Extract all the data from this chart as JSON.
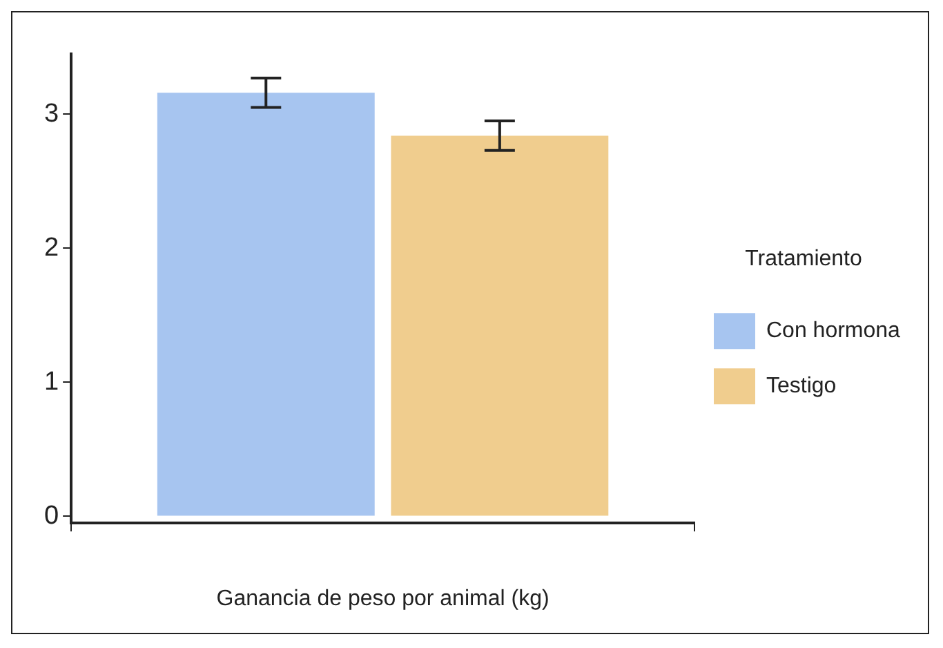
{
  "chart_data": {
    "type": "bar",
    "xlabel": "Ganancia de peso por animal (kg)",
    "categories": [
      null
    ],
    "series": [
      {
        "name": "Con hormona",
        "color": "#a7c5f0",
        "values": [
          3.16
        ],
        "errors": [
          [
            3.05,
            3.27
          ]
        ]
      },
      {
        "name": "Testigo",
        "color": "#f0cd8e",
        "values": [
          2.84
        ],
        "errors": [
          [
            2.73,
            2.95
          ]
        ]
      }
    ],
    "legend_title": "Tratamiento",
    "legend": "right",
    "grid": false,
    "ylim": [
      -0.05,
      3.45
    ],
    "yticks": [
      0,
      1,
      2,
      3
    ]
  }
}
